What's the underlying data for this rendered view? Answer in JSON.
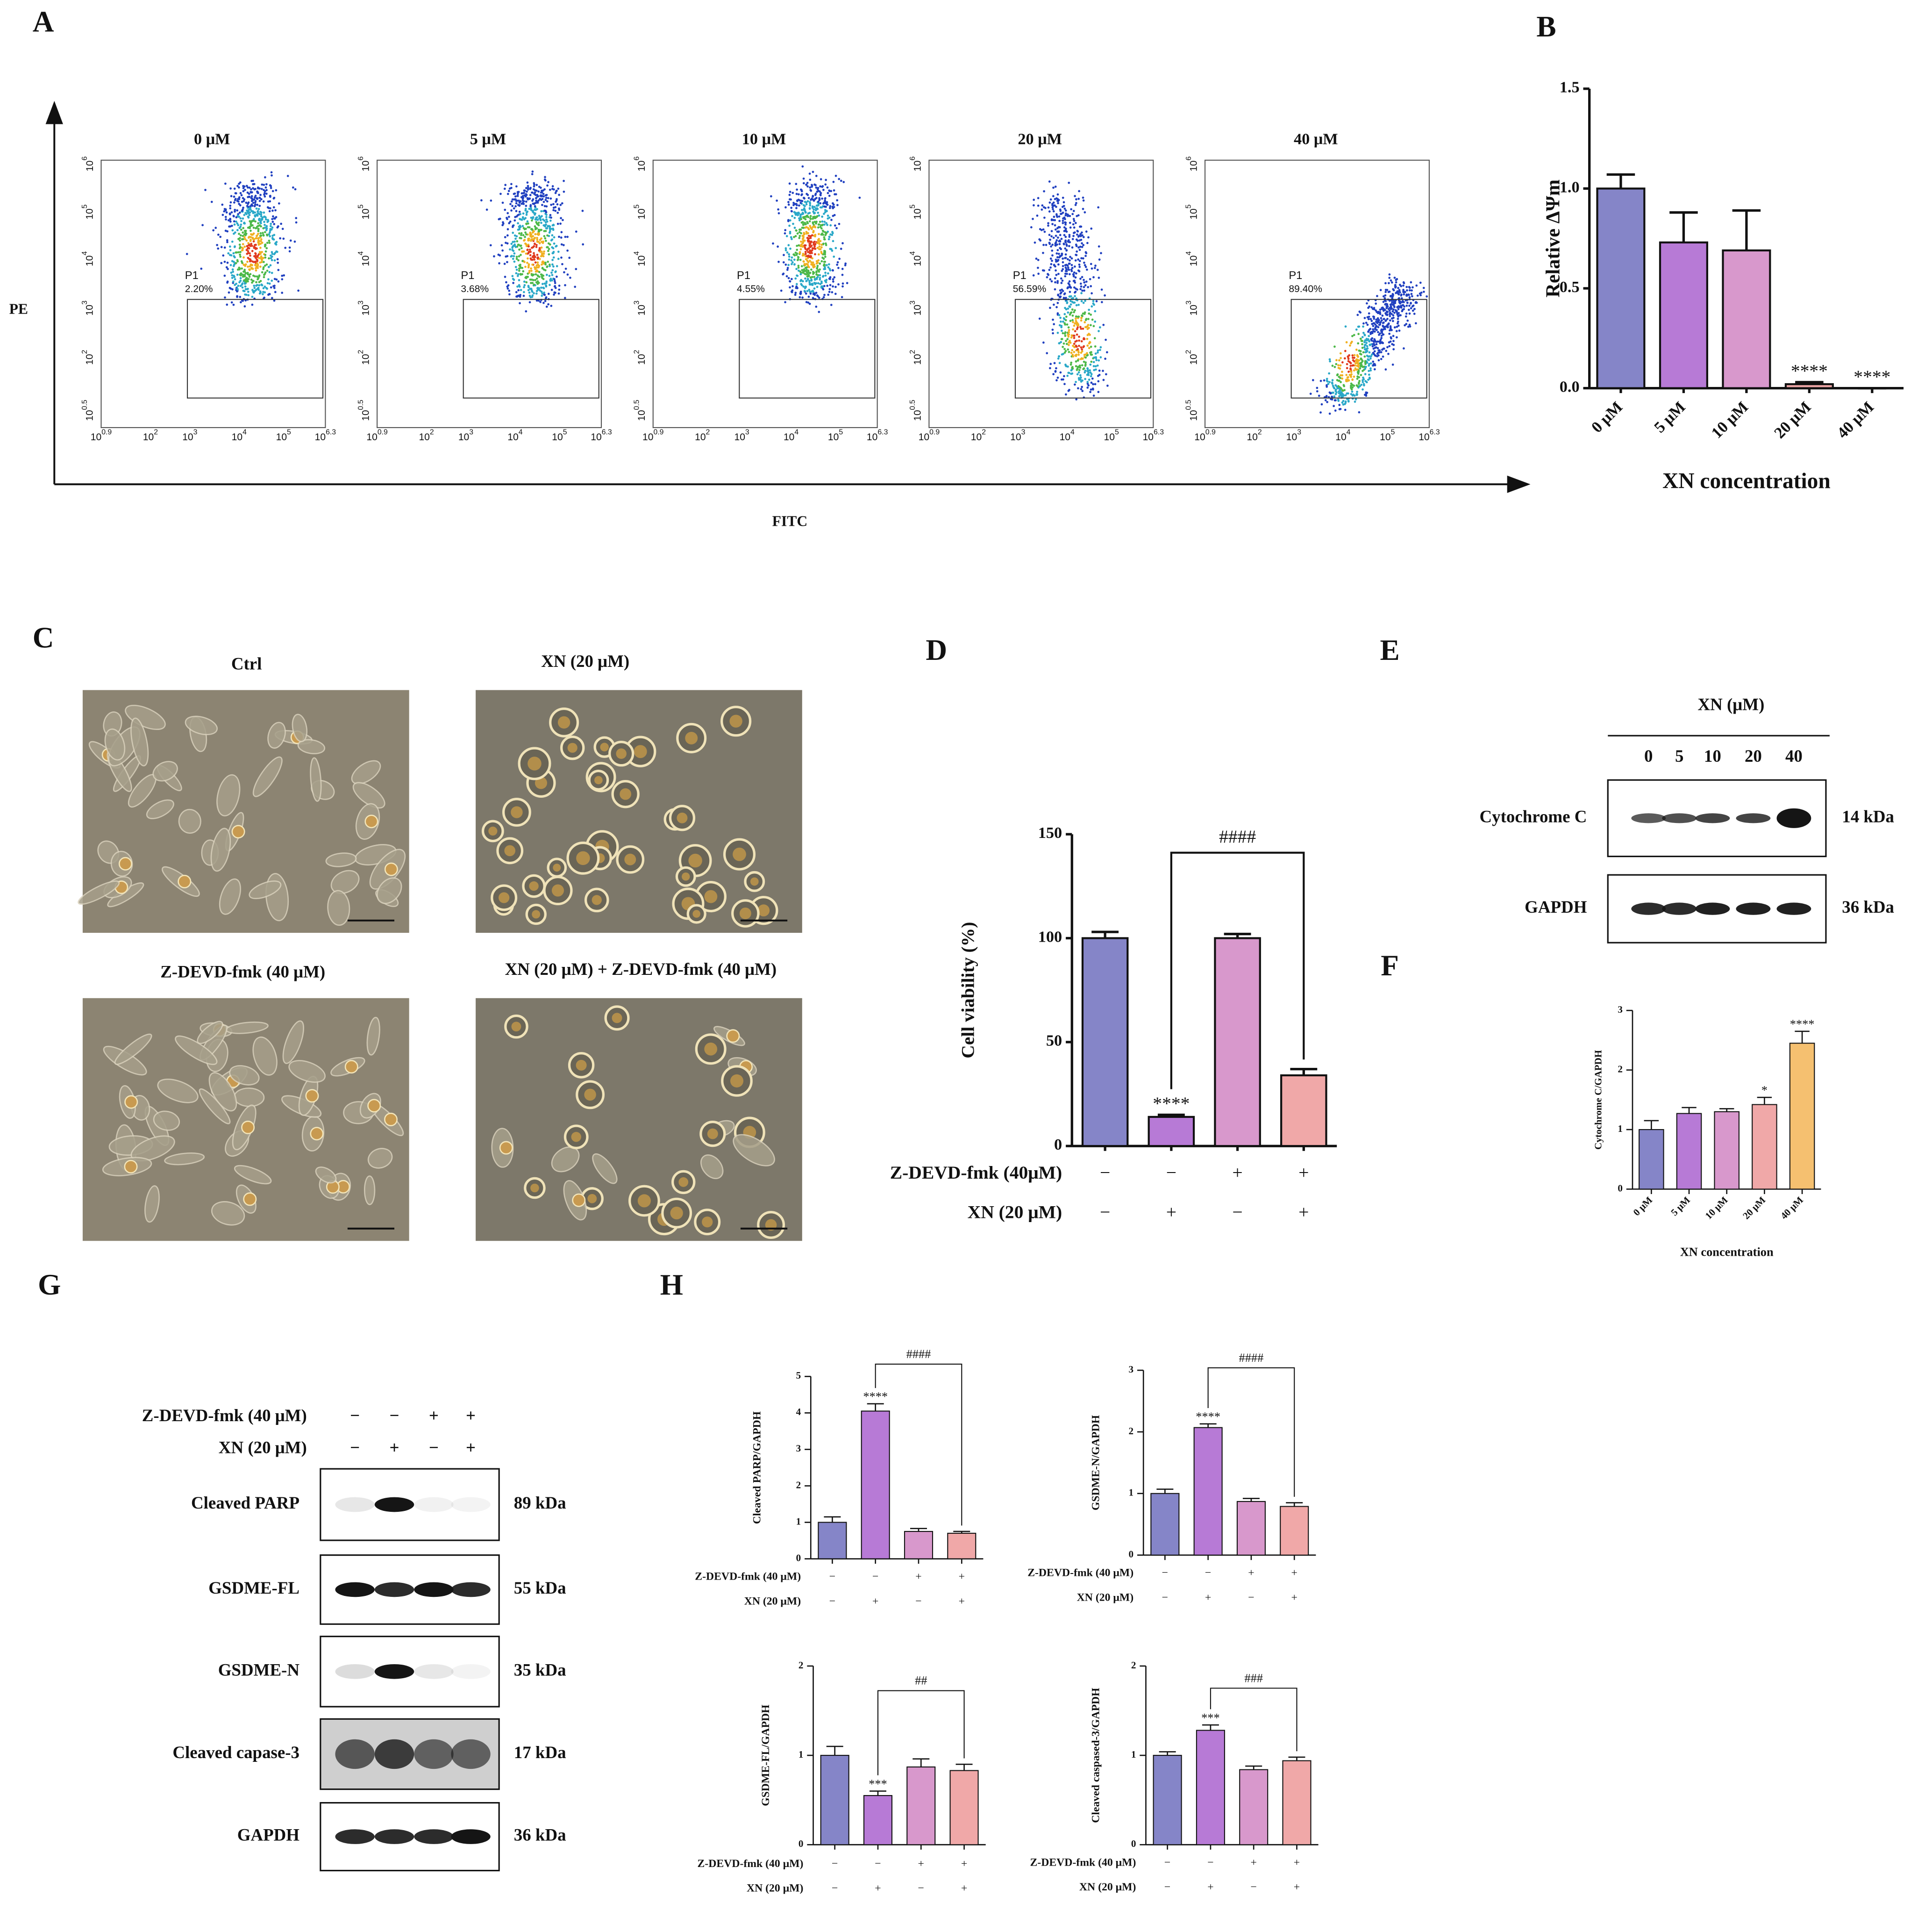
{
  "figure": {
    "panel_labels": [
      "A",
      "B",
      "C",
      "D",
      "E",
      "F",
      "G",
      "H"
    ],
    "flow": {
      "y_axis_label": "PE",
      "x_axis_label": "FITC",
      "base": "10",
      "y_exponents": [
        "0.5",
        "2",
        "3",
        "4",
        "5",
        "6"
      ],
      "x_exponents": [
        "0.9",
        "2",
        "3",
        "4",
        "5",
        "6.3"
      ],
      "plots": [
        {
          "title": "0 μM",
          "gate": "P1",
          "percent": "2.20%"
        },
        {
          "title": "5 μM",
          "gate": "P1",
          "percent": "3.68%"
        },
        {
          "title": "10 μM",
          "gate": "P1",
          "percent": "4.55%"
        },
        {
          "title": "20 μM",
          "gate": "P1",
          "percent": "56.59%"
        },
        {
          "title": "40 μM",
          "gate": "P1",
          "percent": "89.40%"
        }
      ]
    },
    "micrographs": {
      "titles": [
        "Ctrl",
        "XN (20 μM)",
        "Z-DEVD-fmk (40 μM)",
        "XN (20 μM) + Z-DEVD-fmk (40 μM)"
      ]
    },
    "blot_e": {
      "header": "XN (μM)",
      "lanes": [
        "0",
        "5",
        "10",
        "20",
        "40"
      ],
      "rows": [
        {
          "label": "Cytochrome C",
          "size": "14 kDa"
        },
        {
          "label": "GAPDH",
          "size": "36 kDa"
        }
      ]
    },
    "blot_g": {
      "conditions": [
        {
          "label": "Z-DEVD-fmk (40 μM)",
          "signs": [
            "−",
            "−",
            "+",
            "+"
          ]
        },
        {
          "label": "XN (20 μM)",
          "signs": [
            "−",
            "+",
            "−",
            "+"
          ]
        }
      ],
      "rows": [
        {
          "label": "Cleaved PARP",
          "size": "89 kDa"
        },
        {
          "label": "GSDME-FL",
          "size": "55 kDa"
        },
        {
          "label": "GSDME-N",
          "size": "35 kDa"
        },
        {
          "label": "Cleaved capase-3",
          "size": "17 kDa"
        },
        {
          "label": "GAPDH",
          "size": "36 kDa"
        }
      ]
    }
  },
  "chart_data": [
    {
      "type": "bar",
      "ylabel": "Relative ΔΨm",
      "xlabel": "XN concentration",
      "categories": [
        "0 μM",
        "5 μM",
        "10 μM",
        "20 μM",
        "40 μM"
      ],
      "values": [
        1.0,
        0.73,
        0.69,
        0.02,
        0.0
      ],
      "errors": [
        0.07,
        0.15,
        0.2,
        0.01,
        0
      ],
      "stars": [
        null,
        null,
        null,
        "****",
        "****"
      ],
      "colors": [
        "#8585c8",
        "#b77ad6",
        "#d898cc",
        "#f0a8a8",
        "#f5c070"
      ],
      "ylim": [
        0,
        1.5
      ],
      "yticks": [
        {
          "value": 0,
          "label": "0.0"
        },
        0.5,
        {
          "value": 1,
          "label": "1.0"
        },
        1.5
      ]
    },
    {
      "type": "bar",
      "ylabel": "Cell viability (%)",
      "conditions": [
        {
          "label": "Z-DEVD-fmk (40μM)",
          "signs": [
            "−",
            "−",
            "+",
            "+"
          ]
        },
        {
          "label": "XN (20 μM)",
          "signs": [
            "−",
            "+",
            "−",
            "+"
          ]
        }
      ],
      "values": [
        100,
        14,
        100,
        34
      ],
      "errors": [
        3,
        1,
        2,
        3
      ],
      "stars": [
        null,
        "****",
        null,
        null
      ],
      "bracket": {
        "from": 1,
        "to": 3,
        "text": "####"
      },
      "colors": [
        "#8585c8",
        "#b77ad6",
        "#d898cc",
        "#f0a8a8"
      ],
      "ylim": [
        0,
        150
      ],
      "yticks": [
        0,
        50,
        100,
        150
      ]
    },
    {
      "type": "bar",
      "ylabel": "Cytochrome C/GAPDH",
      "xlabel": "XN concentration",
      "categories": [
        "0 μM",
        "5 μM",
        "10 μM",
        "20 μM",
        "40 μM"
      ],
      "values": [
        1.0,
        1.27,
        1.3,
        1.42,
        2.45
      ],
      "errors": [
        0.15,
        0.1,
        0.05,
        0.12,
        0.2
      ],
      "stars": [
        null,
        null,
        null,
        "*",
        "****"
      ],
      "colors": [
        "#8585c8",
        "#b77ad6",
        "#d898cc",
        "#f0a8a8",
        "#f5c070"
      ],
      "ylim": [
        0,
        3
      ],
      "yticks": [
        0,
        1,
        2,
        3
      ]
    },
    {
      "type": "bar",
      "ylabel": "Cleaved PARP/GAPDH",
      "conditions": [
        {
          "label": "Z-DEVD-fmk (40 μM)",
          "signs": [
            "−",
            "−",
            "+",
            "+"
          ]
        },
        {
          "label": "XN (20 μM)",
          "signs": [
            "−",
            "+",
            "−",
            "+"
          ]
        }
      ],
      "values": [
        1.0,
        4.05,
        0.75,
        0.7
      ],
      "errors": [
        0.15,
        0.2,
        0.08,
        0.05
      ],
      "stars": [
        null,
        "****",
        null,
        null
      ],
      "bracket": {
        "from": 1,
        "to": 3,
        "text": "####"
      },
      "colors": [
        "#8585c8",
        "#b77ad6",
        "#d898cc",
        "#f0a8a8"
      ],
      "ylim": [
        0,
        5
      ],
      "yticks": [
        0,
        1,
        2,
        3,
        4,
        5
      ]
    },
    {
      "type": "bar",
      "ylabel": "GSDME-N/GAPDH",
      "conditions": [
        {
          "label": "Z-DEVD-fmk (40 μM)",
          "signs": [
            "−",
            "−",
            "+",
            "+"
          ]
        },
        {
          "label": "XN (20 μM)",
          "signs": [
            "−",
            "+",
            "−",
            "+"
          ]
        }
      ],
      "values": [
        1.0,
        2.07,
        0.87,
        0.79
      ],
      "errors": [
        0.07,
        0.06,
        0.05,
        0.06
      ],
      "stars": [
        null,
        "****",
        null,
        null
      ],
      "bracket": {
        "from": 1,
        "to": 3,
        "text": "####"
      },
      "colors": [
        "#8585c8",
        "#b77ad6",
        "#d898cc",
        "#f0a8a8"
      ],
      "ylim": [
        0,
        3
      ],
      "yticks": [
        0,
        1,
        2,
        3
      ]
    },
    {
      "type": "bar",
      "ylabel": "GSDME-FL/GAPDH",
      "conditions": [
        {
          "label": "Z-DEVD-fmk (40 μM)",
          "signs": [
            "−",
            "−",
            "+",
            "+"
          ]
        },
        {
          "label": "XN (20 μM)",
          "signs": [
            "−",
            "+",
            "−",
            "+"
          ]
        }
      ],
      "values": [
        1.0,
        0.55,
        0.87,
        0.83
      ],
      "errors": [
        0.1,
        0.05,
        0.09,
        0.07
      ],
      "stars": [
        null,
        "***",
        null,
        null
      ],
      "bracket": {
        "from": 1,
        "to": 3,
        "text": "##"
      },
      "colors": [
        "#8585c8",
        "#b77ad6",
        "#d898cc",
        "#f0a8a8"
      ],
      "ylim": [
        0,
        2
      ],
      "yticks": [
        0,
        1,
        2
      ]
    },
    {
      "type": "bar",
      "ylabel": "Cleaved caspased-3/GAPDH",
      "conditions": [
        {
          "label": "Z-DEVD-fmk (40 μM)",
          "signs": [
            "−",
            "−",
            "+",
            "+"
          ]
        },
        {
          "label": "XN (20 μM)",
          "signs": [
            "−",
            "+",
            "−",
            "+"
          ]
        }
      ],
      "values": [
        1.0,
        1.28,
        0.84,
        0.94
      ],
      "errors": [
        0.04,
        0.06,
        0.04,
        0.04
      ],
      "stars": [
        null,
        "***",
        null,
        null
      ],
      "bracket": {
        "from": 1,
        "to": 3,
        "text": "###"
      },
      "colors": [
        "#8585c8",
        "#b77ad6",
        "#d898cc",
        "#f0a8a8"
      ],
      "ylim": [
        0,
        2
      ],
      "yticks": [
        0,
        1,
        2
      ]
    }
  ]
}
